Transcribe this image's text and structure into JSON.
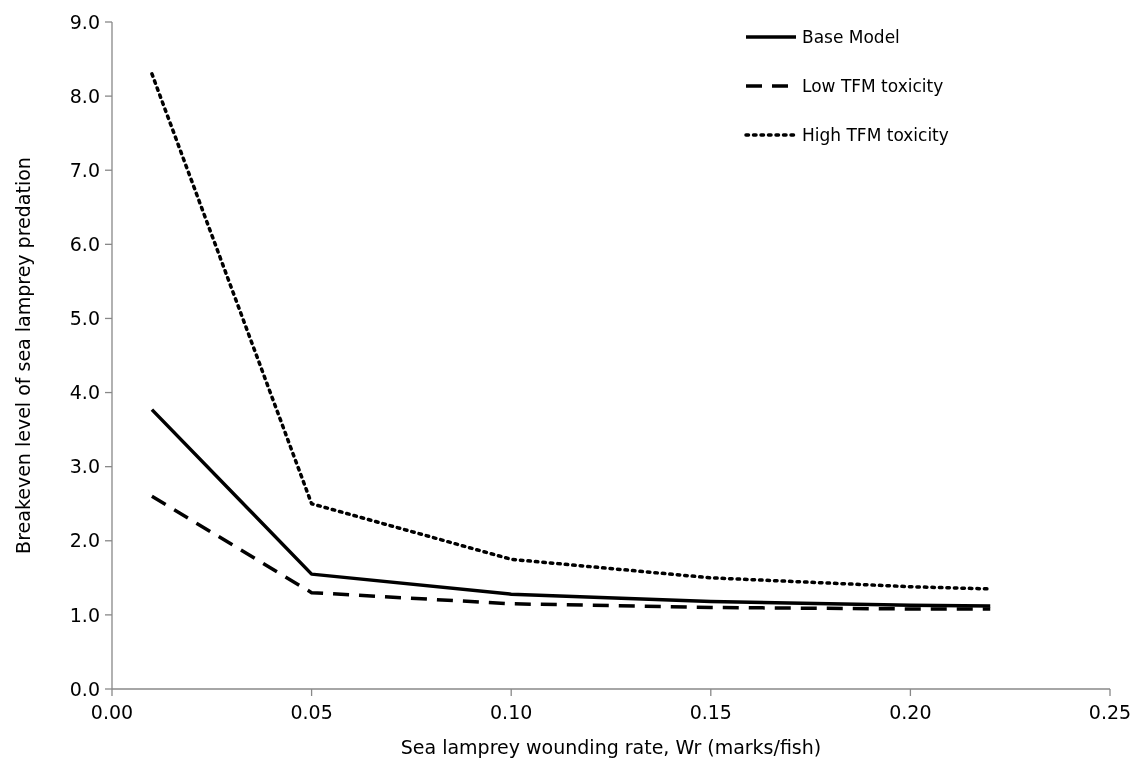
{
  "chart_data": {
    "type": "line",
    "xlabel": "Sea lamprey wounding rate, Wr (marks/fish)",
    "ylabel": "Breakeven level of sea lamprey predation",
    "x": [
      0.01,
      0.05,
      0.1,
      0.15,
      0.2,
      0.22
    ],
    "series": [
      {
        "name": "Base Model",
        "color": "#000000",
        "line_style": "solid",
        "values": [
          3.77,
          1.55,
          1.28,
          1.18,
          1.13,
          1.12
        ]
      },
      {
        "name": "Low TFM toxicity",
        "color": "#000000",
        "line_style": "dashed",
        "values": [
          2.6,
          1.3,
          1.15,
          1.1,
          1.08,
          1.08
        ]
      },
      {
        "name": "High TFM toxicity",
        "color": "#000000",
        "line_style": "dotted",
        "values": [
          8.3,
          2.5,
          1.75,
          1.5,
          1.38,
          1.35
        ]
      }
    ],
    "xlim": [
      0,
      0.25
    ],
    "xticks": [
      {
        "value": 0,
        "label": "0.00"
      },
      {
        "value": 0.05,
        "label": "0.05"
      },
      {
        "value": 0.1,
        "label": "0.10"
      },
      {
        "value": 0.15,
        "label": "0.15"
      },
      {
        "value": 0.2,
        "label": "0.20"
      },
      {
        "value": 0.25,
        "label": "0.25"
      }
    ],
    "ylim": [
      0,
      9
    ],
    "yticks": [
      {
        "value": 0,
        "label": "0.0"
      },
      {
        "value": 1,
        "label": "1.0"
      },
      {
        "value": 2,
        "label": "2.0"
      },
      {
        "value": 3,
        "label": "3.0"
      },
      {
        "value": 4,
        "label": "4.0"
      },
      {
        "value": 5,
        "label": "5.0"
      },
      {
        "value": 6,
        "label": "6.0"
      },
      {
        "value": 7,
        "label": "7.0"
      },
      {
        "value": 8,
        "label": "8.0"
      },
      {
        "value": 9,
        "label": "9.0"
      }
    ],
    "grid": false,
    "legend": "top right"
  }
}
